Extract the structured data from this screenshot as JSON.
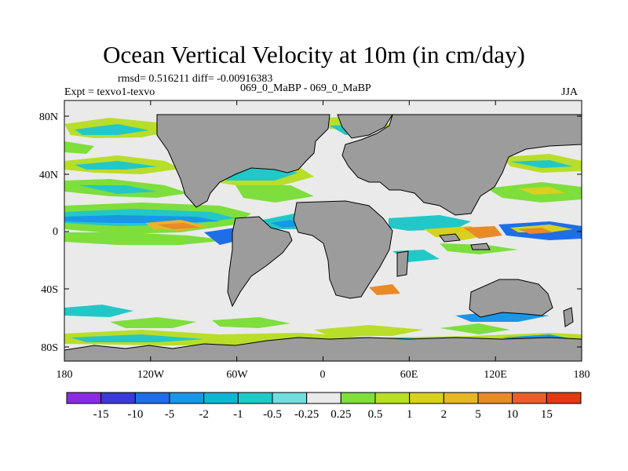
{
  "title": "Ocean Vertical Velocity at 10m (in cm/day)",
  "stats": {
    "rmsd_label": "rmsd=",
    "rmsd": "0.516211",
    "diff_label": "diff=",
    "diff": "-0.00916383"
  },
  "experiment": "Expt = texvo1-texvo",
  "case": "069_0_MaBP - 069_0_MaBP",
  "season": "JJA",
  "lat_ticks": [
    "80N",
    "40N",
    "0",
    "40S",
    "80S"
  ],
  "lon_ticks": [
    "180",
    "120W",
    "60W",
    "0",
    "60E",
    "120E",
    "180"
  ],
  "colorbar": {
    "labels": [
      "-15",
      "-10",
      "-5",
      "-2",
      "-1",
      "-0.5",
      "-0.25",
      "0.25",
      "0.5",
      "1",
      "2",
      "5",
      "10",
      "15"
    ],
    "colors": [
      "#8a2be2",
      "#3a3ad8",
      "#1e6ee8",
      "#1a96e8",
      "#14b4d8",
      "#22c8c8",
      "#70dede",
      "#eaeaea",
      "#7ede3c",
      "#b8de2a",
      "#d8d020",
      "#e8b428",
      "#e88a28",
      "#e86028",
      "#e03a10"
    ]
  },
  "colors": {
    "land": "#9c9c9c",
    "neutral": "#eaeaea"
  }
}
